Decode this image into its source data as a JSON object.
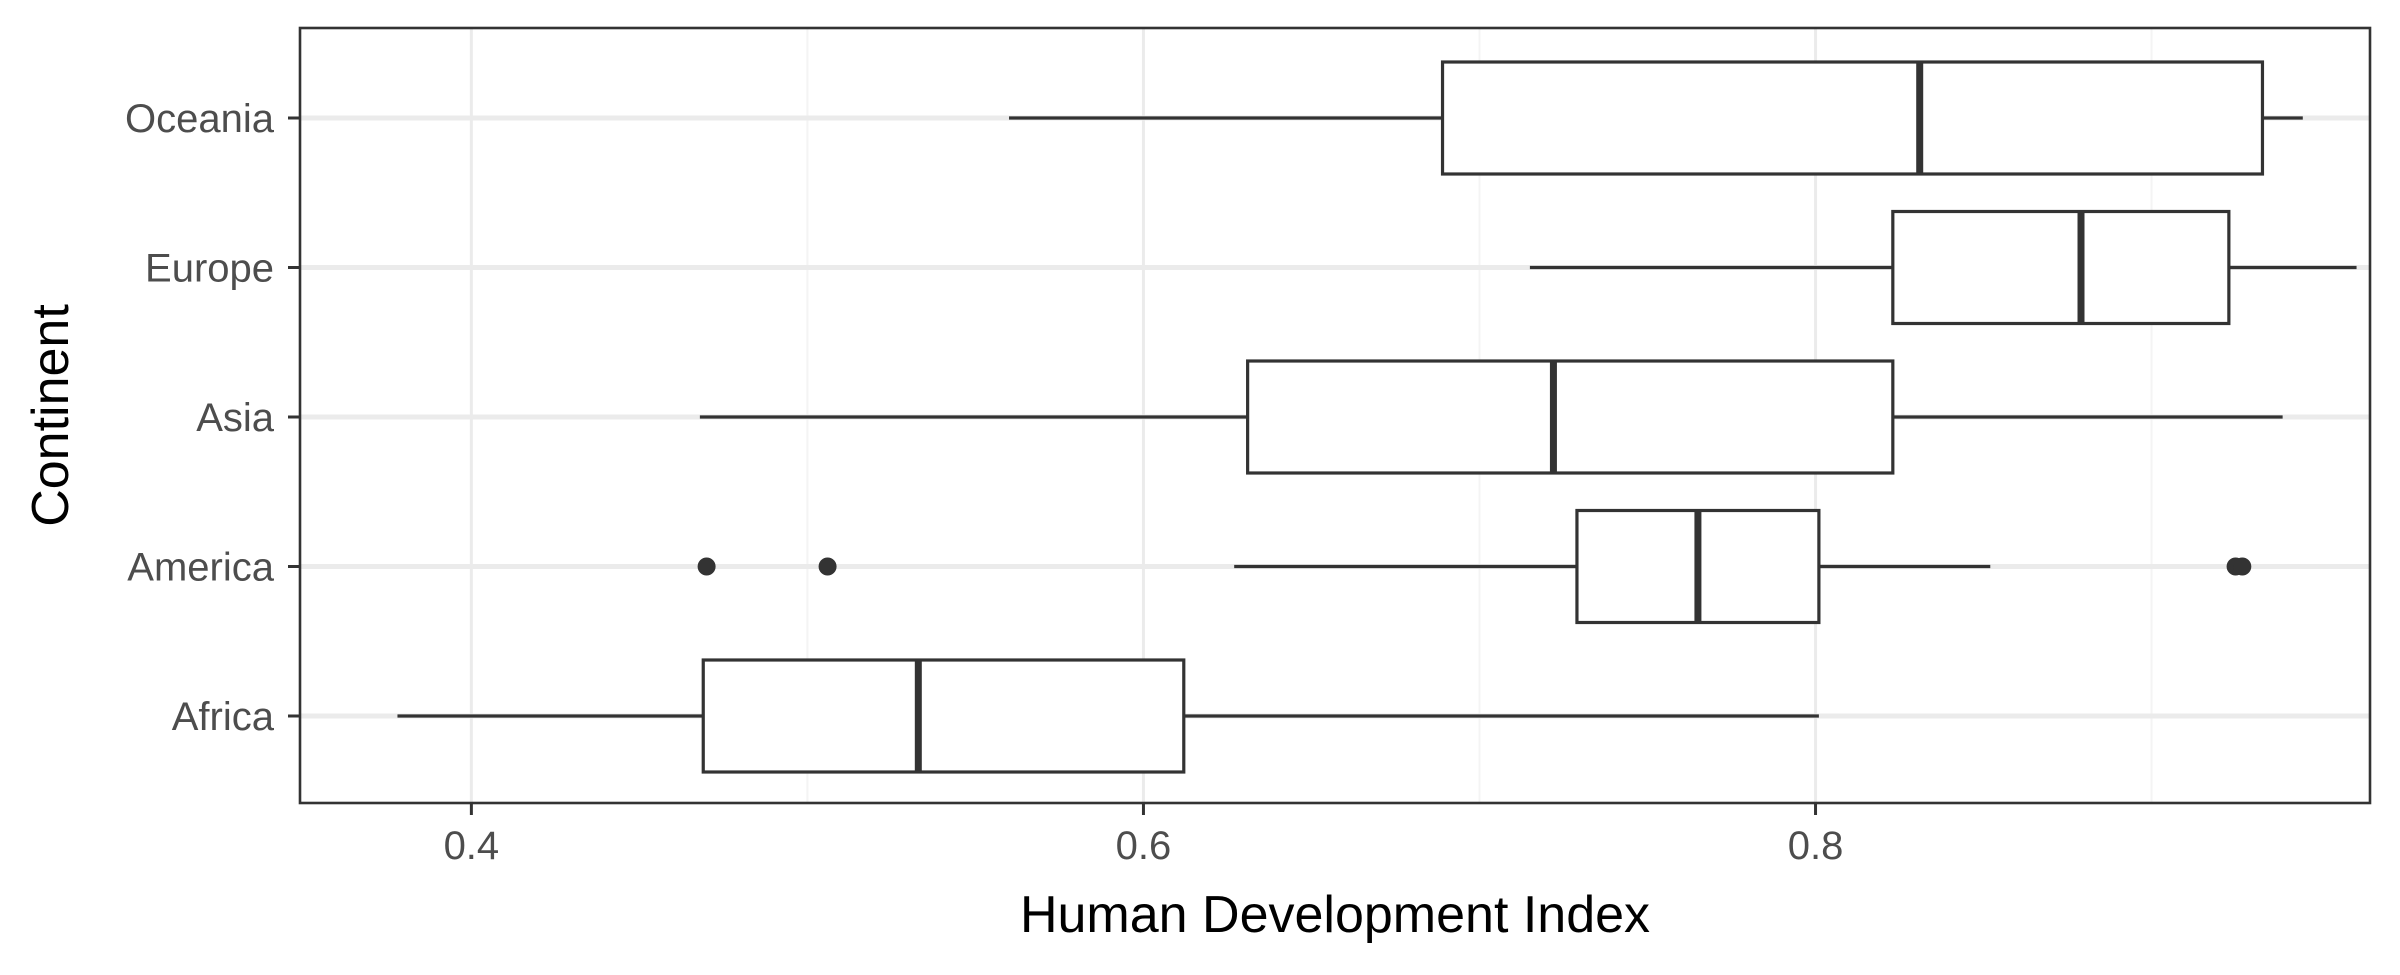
{
  "chart_data": {
    "type": "boxplot",
    "orientation": "horizontal",
    "title": "",
    "xlabel": "Human Development Index",
    "ylabel": "Continent",
    "xlim": [
      0.349,
      0.965
    ],
    "x_ticks": [
      0.4,
      0.6,
      0.8
    ],
    "x_tick_labels": [
      "0.4",
      "0.6",
      "0.8"
    ],
    "grid": true,
    "categories": [
      "Africa",
      "America",
      "Asia",
      "Europe",
      "Oceania"
    ],
    "series": [
      {
        "category": "Africa",
        "whisker_low": 0.378,
        "q1": 0.469,
        "median": 0.533,
        "q3": 0.612,
        "whisker_high": 0.801,
        "outliers": []
      },
      {
        "category": "America",
        "whisker_low": 0.627,
        "q1": 0.729,
        "median": 0.765,
        "q3": 0.801,
        "whisker_high": 0.852,
        "outliers": [
          0.47,
          0.506,
          0.925,
          0.927
        ]
      },
      {
        "category": "Asia",
        "whisker_low": 0.468,
        "q1": 0.631,
        "median": 0.722,
        "q3": 0.823,
        "whisker_high": 0.939,
        "outliers": []
      },
      {
        "category": "Europe",
        "whisker_low": 0.715,
        "q1": 0.823,
        "median": 0.879,
        "q3": 0.923,
        "whisker_high": 0.961,
        "outliers": []
      },
      {
        "category": "Oceania",
        "whisker_low": 0.56,
        "q1": 0.689,
        "median": 0.831,
        "q3": 0.933,
        "whisker_high": 0.945,
        "outliers": []
      }
    ],
    "colors": {
      "box_stroke": "#333333",
      "box_fill": "#ffffff",
      "grid_major": "#ebebeb",
      "grid_minor": "#f4f4f4",
      "panel_border": "#333333",
      "tick_text": "#4d4d4d",
      "title_text": "#000000"
    }
  }
}
